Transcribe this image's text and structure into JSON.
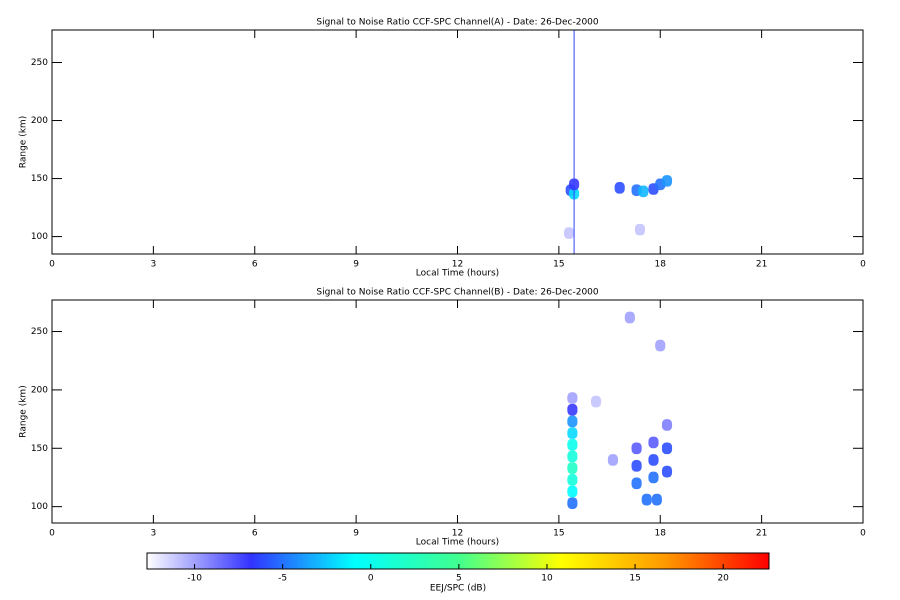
{
  "chart_data": [
    {
      "type": "heatmap",
      "title": "Signal to Noise Ratio CCF-SPC Channel(A) - Date: 26-Dec-2000",
      "x_label": "Local Time (hours)",
      "y_label": "Range (km)",
      "xlim": [
        0,
        24
      ],
      "xticks": [
        0,
        3,
        6,
        9,
        12,
        15,
        18,
        21,
        {
          "value": 24,
          "label": "0"
        }
      ],
      "ylim": [
        85,
        278
      ],
      "yticks": [
        100,
        150,
        200,
        250
      ],
      "vline": 15.45,
      "vline_color": "#3344ff",
      "x": [
        15.35,
        15.45,
        15.45,
        16.8,
        17.3,
        17.5,
        17.8,
        18.0,
        18.2,
        17.4,
        15.3
      ],
      "y": [
        140,
        137,
        145,
        142,
        140,
        139,
        141,
        145,
        148,
        106,
        103
      ],
      "values": [
        -6,
        -2,
        -7,
        -6,
        -5,
        -3,
        -6,
        -5,
        -4,
        -11,
        -11
      ]
    },
    {
      "type": "heatmap",
      "title": "Signal to Noise Ratio CCF-SPC Channel(B) - Date: 26-Dec-2000",
      "x_label": "Local Time (hours)",
      "y_label": "Range (km)",
      "xlim": [
        0,
        24
      ],
      "xticks": [
        0,
        3,
        6,
        9,
        12,
        15,
        18,
        21,
        {
          "value": 24,
          "label": "0"
        }
      ],
      "ylim": [
        86,
        277
      ],
      "yticks": [
        100,
        150,
        200,
        250
      ],
      "x": [
        15.4,
        15.4,
        15.4,
        15.4,
        15.4,
        15.4,
        15.4,
        15.4,
        15.4,
        15.4,
        17.3,
        17.3,
        17.3,
        17.8,
        17.8,
        17.8,
        18.2,
        18.2,
        18.2,
        17.6,
        17.9,
        16.6,
        17.1,
        18.0,
        16.1
      ],
      "y": [
        103,
        113,
        123,
        133,
        143,
        153,
        163,
        173,
        183,
        193,
        120,
        135,
        150,
        125,
        140,
        155,
        130,
        150,
        170,
        106,
        106,
        140,
        262,
        238,
        190
      ],
      "values": [
        -5,
        -1,
        1,
        2,
        1,
        0,
        -2,
        -4,
        -7,
        -10,
        -5,
        -6,
        -8,
        -5,
        -6,
        -8,
        -6,
        -6,
        -9,
        -5,
        -5,
        -10,
        -10,
        -10,
        -11
      ]
    },
    {
      "type": "colorbar",
      "x_label": "EEJ/SPC (dB)",
      "xlim": [
        -12.7,
        22.6
      ],
      "xticks": [
        -10,
        -5,
        0,
        5,
        10,
        15,
        20
      ],
      "colormap": [
        "#ffffff",
        "#3333ff",
        "#00ffff",
        "#40ff90",
        "#ffff00",
        "#ff9900",
        "#ff0000"
      ]
    }
  ]
}
